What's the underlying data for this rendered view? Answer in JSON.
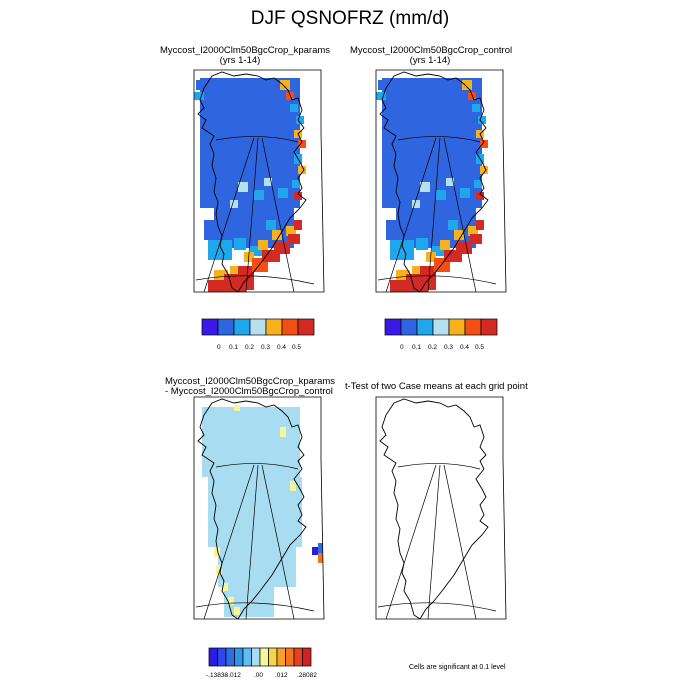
{
  "figure": {
    "title": "DJF QSNOFRZ (mm/d)"
  },
  "panels": {
    "top_left": {
      "title": "Myccost_I2000Clm50BgcCrop_kparams",
      "subtitle": "(yrs 1-14)"
    },
    "top_right": {
      "title": "Myccost_I2000Clm50BgcCrop_control",
      "subtitle": "(yrs 1-14)"
    },
    "bottom_left": {
      "title_line1": "Myccost_I2000Clm50BgcCrop_kparams",
      "title_line2": "- Myccost_I2000Clm50BgcCrop_control"
    },
    "bottom_right": {
      "title": "t-Test of two Case means at each grid point",
      "note": "Cells are significant at 0.1 level"
    }
  },
  "colors": {
    "top_scale": [
      "#3a18e8",
      "#2f66e0",
      "#1fa7ec",
      "#b6e0f0",
      "#f5b21e",
      "#f24f14",
      "#d22a25"
    ],
    "diff_scale": [
      "#2a1ee0",
      "#2f47e8",
      "#2f6de6",
      "#2f94ec",
      "#5fbdf0",
      "#a8dcf0",
      "#f7f59a",
      "#f5d34a",
      "#f7a125",
      "#f37520",
      "#e8401c",
      "#cf2222"
    ],
    "coast": "#000000"
  },
  "chart_data": [
    {
      "type": "heatmap",
      "panel": "top_left",
      "title": "Myccost_I2000Clm50BgcCrop_kparams",
      "colorbar": {
        "tick_labels": [
          "0",
          "0.1",
          "0.2",
          "0.3",
          "0.4",
          "0.5"
        ]
      }
    },
    {
      "type": "heatmap",
      "panel": "top_right",
      "title": "Myccost_I2000Clm50BgcCrop_control",
      "colorbar": {
        "tick_labels": [
          "0",
          "0.1",
          "0.2",
          "0.3",
          "0.4",
          "0.5"
        ]
      }
    },
    {
      "type": "heatmap",
      "panel": "bottom_left",
      "title": "Myccost_I2000Clm50BgcCrop_kparams - Myccost_I2000Clm50BgcCrop_control",
      "colorbar": {
        "tick_labels": [
          "-.13838",
          "-.012",
          ".00",
          ".012",
          ".28082"
        ]
      }
    },
    {
      "type": "heatmap",
      "panel": "bottom_right",
      "title": "t-Test of two Case means at each grid point",
      "colorbar": {
        "tick_labels": []
      }
    }
  ]
}
